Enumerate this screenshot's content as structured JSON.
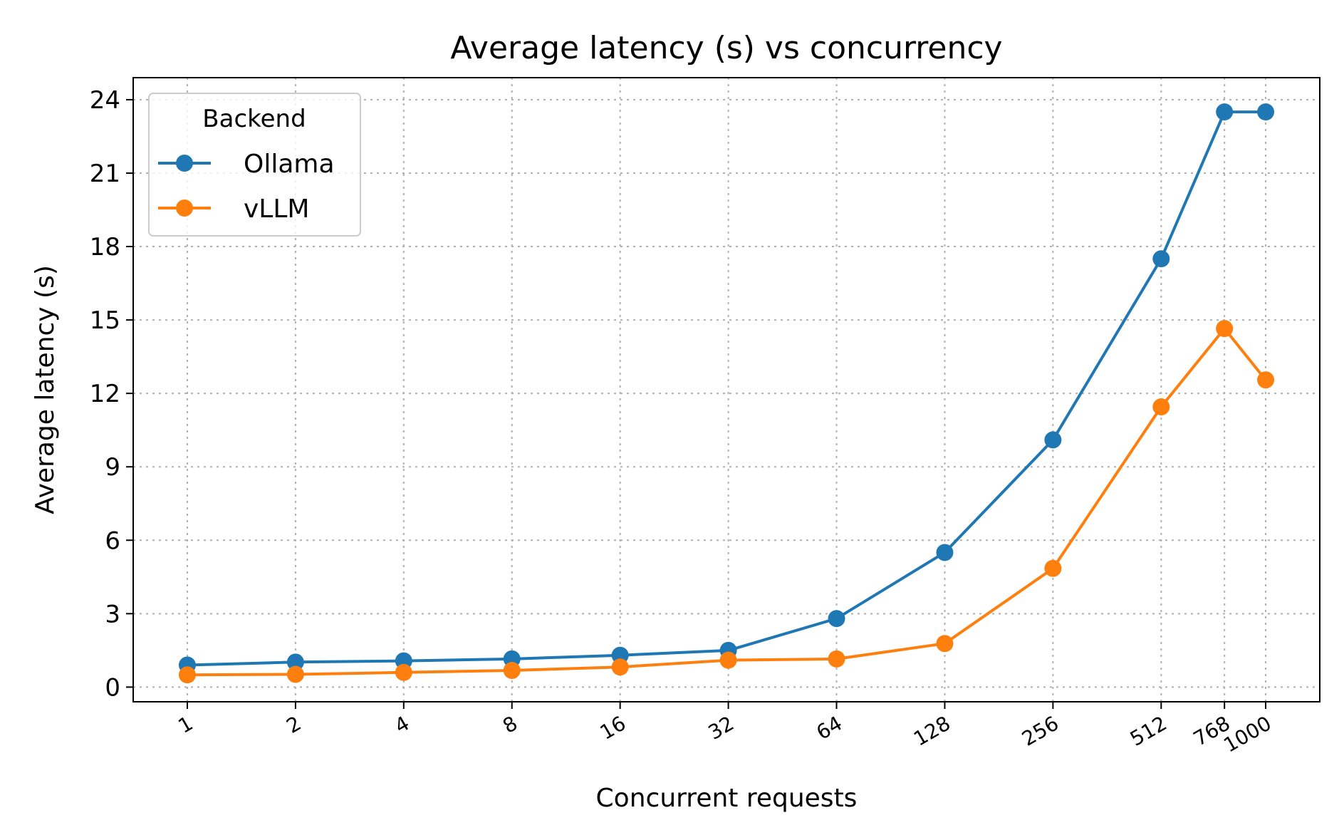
{
  "chart_data": {
    "type": "line",
    "title": "Average latency (s) vs concurrency",
    "xlabel": "Concurrent requests",
    "ylabel": "Average latency (s)",
    "x_scale": "log2",
    "x": [
      1,
      2,
      4,
      8,
      16,
      32,
      64,
      128,
      256,
      512,
      768,
      1000
    ],
    "x_tick_labels": [
      "1",
      "2",
      "4",
      "8",
      "16",
      "32",
      "64",
      "128",
      "256",
      "512",
      "768",
      "1000"
    ],
    "ylim": [
      -0.6,
      24.9
    ],
    "y_ticks": [
      0,
      3,
      6,
      9,
      12,
      15,
      18,
      21,
      24
    ],
    "grid": true,
    "legend": {
      "title": "Backend",
      "placement": "top-left"
    },
    "series": [
      {
        "name": "Ollama",
        "color": "#1f77b4",
        "values": [
          0.9,
          1.02,
          1.07,
          1.15,
          1.3,
          1.5,
          2.8,
          5.5,
          10.1,
          17.5,
          23.5,
          23.5
        ]
      },
      {
        "name": "vLLM",
        "color": "#ff7f0e",
        "values": [
          0.5,
          0.52,
          0.6,
          0.68,
          0.82,
          1.1,
          1.15,
          1.78,
          4.85,
          11.45,
          14.65,
          12.55
        ]
      }
    ]
  }
}
